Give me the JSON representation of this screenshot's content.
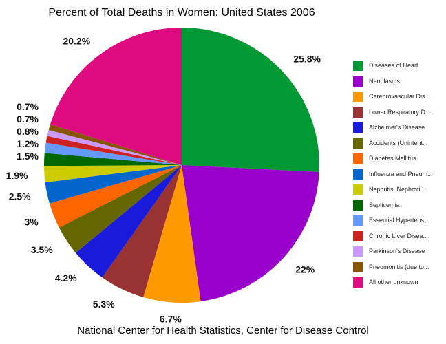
{
  "chart_data": {
    "type": "pie",
    "title": "Percent of Total Deaths in Women: United States 2006",
    "footer": "National Center for Health Statistics, Center for Disease Control",
    "legend_position": "right",
    "slices": [
      {
        "name": "Diseases of Heart",
        "value": 25.8,
        "label": "25.8%",
        "color": "#009933"
      },
      {
        "name": "Neoplasms",
        "value": 22,
        "label": "22%",
        "color": "#9900cc"
      },
      {
        "name": "Cerebrovascular Dis...",
        "value": 6.7,
        "label": "6.7%",
        "color": "#ff9900"
      },
      {
        "name": "Lower Respiratory D...",
        "value": 5.3,
        "label": "5.3%",
        "color": "#993333"
      },
      {
        "name": "Alzheimer's Disease",
        "value": 4.2,
        "label": "4.2%",
        "color": "#1a1adb"
      },
      {
        "name": "Accidents (Unintent...",
        "value": 3.5,
        "label": "3.5%",
        "color": "#666600"
      },
      {
        "name": "Diabetes Mellitus",
        "value": 3,
        "label": "3%",
        "color": "#ff6600"
      },
      {
        "name": "Influenza and Pneum...",
        "value": 2.5,
        "label": "2.5%",
        "color": "#0066cc"
      },
      {
        "name": "Nephritis, Nephroti...",
        "value": 1.9,
        "label": "1.9%",
        "color": "#cccc00"
      },
      {
        "name": "Septicemia",
        "value": 1.5,
        "label": "1.5%",
        "color": "#006600"
      },
      {
        "name": "Essential Hypertens...",
        "value": 1.2,
        "label": "1.2%",
        "color": "#6699ff"
      },
      {
        "name": "Chronic Liver Disea...",
        "value": 0.8,
        "label": "0.8%",
        "color": "#cc2222"
      },
      {
        "name": "Parkinson's Disease",
        "value": 0.7,
        "label": "0.7%",
        "color": "#cc99ff"
      },
      {
        "name": "Pneumonitis (due to...",
        "value": 0.7,
        "label": "0.7%",
        "color": "#885500"
      },
      {
        "name": "All other unknown",
        "value": 20.2,
        "label": "20.2%",
        "color": "#dd0a80"
      }
    ]
  }
}
